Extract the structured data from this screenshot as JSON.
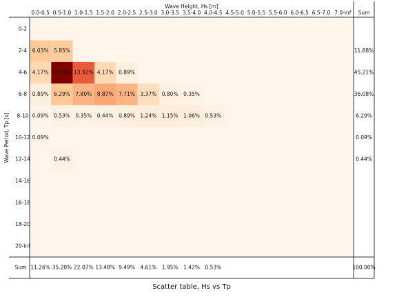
{
  "chart_data": {
    "type": "heatmap",
    "title": "Scatter table, Hs vs Tp",
    "x_label": "Wave Height, Hs [m]",
    "y_label": "Wave Period, Tp [s]",
    "columns": [
      "0.0-0.5",
      "0.5-1.0",
      "1.0-1.5",
      "1.5-2.0",
      "2.0-2.5",
      "2.5-3.0",
      "3.0-3.5",
      "3.5-4.0",
      "4.0-4.5",
      "4.5-5.0",
      "5.0-5.5",
      "5.5-6.0",
      "6.0-6.5",
      "6.5-7.0",
      "7.0-inf"
    ],
    "rows": [
      "0-2",
      "2-4",
      "4-6",
      "6-8",
      "8-10",
      "10-12",
      "12-14",
      "14-16",
      "16-18",
      "18-20",
      "20-inf"
    ],
    "values": [
      [
        null,
        null,
        null,
        null,
        null,
        null,
        null,
        null,
        null,
        null,
        null,
        null,
        null,
        null,
        null
      ],
      [
        6.03,
        5.85,
        null,
        null,
        null,
        null,
        null,
        null,
        null,
        null,
        null,
        null,
        null,
        null,
        null
      ],
      [
        4.17,
        22.06,
        13.92,
        4.17,
        0.89,
        null,
        null,
        null,
        null,
        null,
        null,
        null,
        null,
        null,
        null
      ],
      [
        0.89,
        6.29,
        7.8,
        8.87,
        7.71,
        3.37,
        0.8,
        0.35,
        null,
        null,
        null,
        null,
        null,
        null,
        null
      ],
      [
        0.09,
        0.53,
        0.35,
        0.44,
        0.89,
        1.24,
        1.15,
        1.06,
        0.53,
        null,
        null,
        null,
        null,
        null,
        null
      ],
      [
        0.09,
        null,
        null,
        null,
        null,
        null,
        null,
        null,
        null,
        null,
        null,
        null,
        null,
        null,
        null
      ],
      [
        null,
        0.44,
        null,
        null,
        null,
        null,
        null,
        null,
        null,
        null,
        null,
        null,
        null,
        null,
        null
      ],
      [
        null,
        null,
        null,
        null,
        null,
        null,
        null,
        null,
        null,
        null,
        null,
        null,
        null,
        null,
        null
      ],
      [
        null,
        null,
        null,
        null,
        null,
        null,
        null,
        null,
        null,
        null,
        null,
        null,
        null,
        null,
        null
      ],
      [
        null,
        null,
        null,
        null,
        null,
        null,
        null,
        null,
        null,
        null,
        null,
        null,
        null,
        null,
        null
      ],
      [
        null,
        null,
        null,
        null,
        null,
        null,
        null,
        null,
        null,
        null,
        null,
        null,
        null,
        null,
        null
      ]
    ],
    "value_labels": [
      [
        null,
        null,
        null,
        null,
        null,
        null,
        null,
        null,
        null,
        null,
        null,
        null,
        null,
        null,
        null
      ],
      [
        "6.03%",
        "5.85%",
        null,
        null,
        null,
        null,
        null,
        null,
        null,
        null,
        null,
        null,
        null,
        null,
        null
      ],
      [
        "4.17%",
        "22.06%",
        "13.92%",
        "4.17%",
        "0.89%",
        null,
        null,
        null,
        null,
        null,
        null,
        null,
        null,
        null,
        null
      ],
      [
        "0.89%",
        "6.29%",
        "7.80%",
        "8.87%",
        "7.71%",
        "3.37%",
        "0.80%",
        "0.35%",
        null,
        null,
        null,
        null,
        null,
        null,
        null
      ],
      [
        "0.09%",
        "0.53%",
        "0.35%",
        "0.44%",
        "0.89%",
        "1.24%",
        "1.15%",
        "1.06%",
        "0.53%",
        null,
        null,
        null,
        null,
        null,
        null
      ],
      [
        "0.09%",
        null,
        null,
        null,
        null,
        null,
        null,
        null,
        null,
        null,
        null,
        null,
        null,
        null,
        null
      ],
      [
        null,
        "0.44%",
        null,
        null,
        null,
        null,
        null,
        null,
        null,
        null,
        null,
        null,
        null,
        null,
        null
      ],
      [
        null,
        null,
        null,
        null,
        null,
        null,
        null,
        null,
        null,
        null,
        null,
        null,
        null,
        null,
        null
      ],
      [
        null,
        null,
        null,
        null,
        null,
        null,
        null,
        null,
        null,
        null,
        null,
        null,
        null,
        null,
        null
      ],
      [
        null,
        null,
        null,
        null,
        null,
        null,
        null,
        null,
        null,
        null,
        null,
        null,
        null,
        null,
        null
      ],
      [
        null,
        null,
        null,
        null,
        null,
        null,
        null,
        null,
        null,
        null,
        null,
        null,
        null,
        null,
        null
      ]
    ],
    "sum_label": "Sum",
    "row_sums": [
      null,
      11.88,
      45.21,
      36.08,
      6.29,
      0.09,
      0.44,
      null,
      null,
      null,
      null
    ],
    "row_sum_labels": [
      null,
      "11.88%",
      "45.21%",
      "36.08%",
      "6.29%",
      "0.09%",
      "0.44%",
      null,
      null,
      null,
      null
    ],
    "col_sums": [
      11.26,
      35.2,
      22.07,
      13.48,
      9.49,
      4.61,
      1.95,
      1.42,
      0.53,
      null,
      null,
      null,
      null,
      null,
      null
    ],
    "col_sum_labels": [
      "11.26%",
      "35.20%",
      "22.07%",
      "13.48%",
      "9.49%",
      "4.61%",
      "1.95%",
      "1.42%",
      "0.53%",
      null,
      null,
      null,
      null,
      null,
      null
    ],
    "total": 100.0,
    "total_label": "100.00%",
    "colormap": [
      "#fff5eb",
      "#fdd0a2",
      "#fc8d59",
      "#d7301f",
      "#7f0000"
    ]
  }
}
